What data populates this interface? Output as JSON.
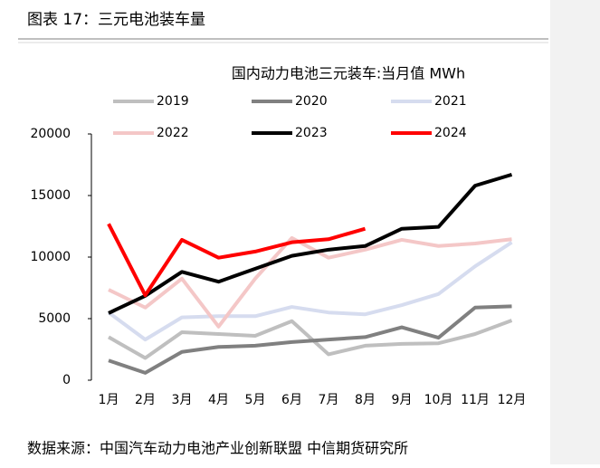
{
  "header": "图表 17：三元电池装车量",
  "source": "数据来源：中国汽车动力电池产业创新联盟 中信期货研究所",
  "chart_data": {
    "type": "line",
    "title": "国内动力电池三元装车:当月值 MWh",
    "categories": [
      "1月",
      "2月",
      "3月",
      "4月",
      "5月",
      "6月",
      "7月",
      "8月",
      "9月",
      "10月",
      "11月",
      "12月"
    ],
    "series": [
      {
        "name": "2019",
        "color": "#bfbfbf",
        "values": [
          3500,
          1800,
          3900,
          3750,
          3600,
          4800,
          2100,
          2800,
          2950,
          3000,
          3750,
          4850
        ]
      },
      {
        "name": "2020",
        "color": "#808080",
        "values": [
          1600,
          600,
          2300,
          2700,
          2800,
          3100,
          3300,
          3500,
          4300,
          3450,
          5900,
          6000
        ]
      },
      {
        "name": "2021",
        "color": "#d6dcef",
        "values": [
          5500,
          3300,
          5100,
          5200,
          5200,
          5950,
          5500,
          5350,
          6100,
          7000,
          9250,
          11200
        ]
      },
      {
        "name": "2022",
        "color": "#f4c7c7",
        "values": [
          7350,
          5900,
          8250,
          4350,
          8250,
          11550,
          9950,
          10600,
          11400,
          10900,
          11100,
          11450
        ]
      },
      {
        "name": "2023",
        "color": "#000000",
        "values": [
          5450,
          6850,
          8800,
          8000,
          9050,
          10100,
          10600,
          10900,
          12300,
          12450,
          15800,
          16700
        ]
      },
      {
        "name": "2024",
        "color": "#ff0000",
        "values": [
          12700,
          6900,
          11400,
          9950,
          10450,
          11200,
          11450,
          12300,
          null,
          null,
          null,
          null
        ]
      }
    ],
    "ylim": [
      0,
      20000
    ],
    "yticks": [
      0,
      5000,
      10000,
      15000,
      20000
    ],
    "grid": false
  }
}
